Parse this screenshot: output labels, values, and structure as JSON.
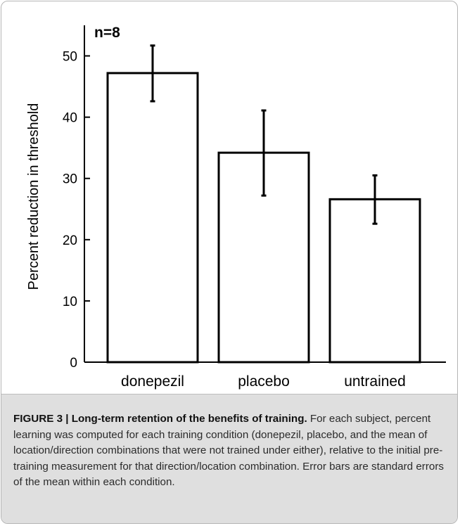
{
  "chart_data": {
    "type": "bar",
    "annotation": "n=8",
    "ylabel": "Percent reduction in threshold",
    "xlabel": "",
    "ylim": [
      0,
      55
    ],
    "yticks": [
      0,
      10,
      20,
      30,
      40,
      50
    ],
    "categories": [
      "donepezil",
      "placebo",
      "untrained"
    ],
    "values": [
      47.2,
      34.2,
      26.6
    ],
    "error_low": [
      42.6,
      27.2,
      22.6
    ],
    "error_high": [
      51.7,
      41.1,
      30.5
    ],
    "grid": false,
    "legend": "none"
  },
  "caption": {
    "lead": "FIGURE 3 | Long-term retention of the benefits of training.",
    "text": " For each subject, percent learning was computed for each training condition (donepezil, placebo, and the mean of location/direction combinations that were not trained under either), relative to the initial pre-training measurement for that direction/location combination. Error bars are standard errors of the mean within each condition."
  }
}
